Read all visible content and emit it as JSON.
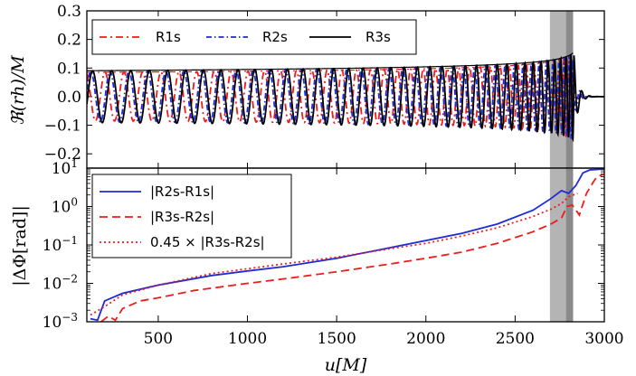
{
  "chart_data": [
    {
      "type": "line",
      "xlabel": "u[M]",
      "ylabel": "ℜ(rh)/M",
      "xlim": [
        100,
        3000
      ],
      "ylim": [
        -0.25,
        0.3
      ],
      "yticks": [
        "−0.2",
        "−0.1",
        "0.0",
        "0.1",
        "0.2",
        "0.3"
      ],
      "ytick_values": [
        -0.2,
        -0.1,
        0.0,
        0.1,
        0.2,
        0.3
      ],
      "legend_position": "top-left",
      "series": [
        {
          "name": "R1s",
          "color": "#ee1c1c",
          "style": "dash-dot",
          "amplitude_at_start": 0.088,
          "peak_u": 2790,
          "peak_amplitude": 0.15
        },
        {
          "name": "R2s",
          "color": "#1f2ad8",
          "style": "dash-dot",
          "amplitude_at_start": 0.088,
          "peak_u": 2820,
          "peak_amplitude": 0.155
        },
        {
          "name": "R3s",
          "color": "#000000",
          "style": "solid",
          "amplitude_at_start": 0.088,
          "peak_u": 2830,
          "peak_amplitude": 0.16
        }
      ],
      "shaded_bands": [
        {
          "from": 2695,
          "to": 2785,
          "color": "#b4b4b4"
        },
        {
          "from": 2785,
          "to": 2825,
          "color": "#8a8a8a"
        }
      ]
    },
    {
      "type": "line",
      "xlabel": "u[M]",
      "ylabel": "|ΔΦ[rad]|",
      "xlim": [
        100,
        3000
      ],
      "ylim": [
        0.001,
        10
      ],
      "yscale": "log",
      "xticks": [
        "500",
        "1000",
        "1500",
        "2000",
        "2500",
        "3000"
      ],
      "xtick_values": [
        500,
        1000,
        1500,
        2000,
        2500,
        3000
      ],
      "yticks": [
        {
          "base": "10",
          "exp": "−3",
          "value": 0.001
        },
        {
          "base": "10",
          "exp": "−2",
          "value": 0.01
        },
        {
          "base": "10",
          "exp": "−1",
          "value": 0.1
        },
        {
          "base": "10",
          "exp": "0",
          "value": 1
        },
        {
          "base": "10",
          "exp": "1",
          "value": 10
        }
      ],
      "legend_position": "top-left",
      "series": [
        {
          "name": "|R2s-R1s|",
          "color": "#1f2ad8",
          "style": "solid",
          "x": [
            120,
            160,
            200,
            300,
            500,
            800,
            1000,
            1200,
            1500,
            1800,
            2000,
            2200,
            2400,
            2600,
            2700,
            2760,
            2800,
            2840,
            2880,
            2920,
            3000
          ],
          "y": [
            0.0012,
            0.0011,
            0.0035,
            0.0055,
            0.009,
            0.016,
            0.021,
            0.027,
            0.045,
            0.085,
            0.13,
            0.2,
            0.35,
            0.8,
            1.6,
            2.6,
            2.2,
            3.5,
            7.5,
            9.0,
            9.5
          ]
        },
        {
          "name": "|R3s-R2s|",
          "color": "#ee1c1c",
          "style": "dashed",
          "x": [
            180,
            220,
            260,
            300,
            400,
            500,
            700,
            800,
            1000,
            1200,
            1500,
            1800,
            2000,
            2200,
            2400,
            2600,
            2700,
            2760,
            2790,
            2820,
            2860,
            2900,
            2940,
            2960,
            3000
          ],
          "y": [
            0.001,
            0.0014,
            0.0011,
            0.0022,
            0.0035,
            0.0042,
            0.0065,
            0.0075,
            0.01,
            0.013,
            0.02,
            0.032,
            0.045,
            0.065,
            0.11,
            0.22,
            0.35,
            0.5,
            1.0,
            1.1,
            0.6,
            2.2,
            4.5,
            6.0,
            7.0
          ]
        },
        {
          "name": "0.45 × |R3s-R2s|",
          "color": "#ee1c1c",
          "style": "dotted",
          "x": [
            120,
            200,
            300,
            500,
            800,
            1000,
            1200,
            1500,
            1800,
            2000,
            2200,
            2400,
            2600,
            2700,
            2760,
            2800,
            2850
          ],
          "y": [
            0.0015,
            0.0025,
            0.005,
            0.009,
            0.018,
            0.024,
            0.032,
            0.048,
            0.08,
            0.11,
            0.17,
            0.28,
            0.55,
            0.85,
            1.2,
            1.8,
            2.2
          ]
        }
      ],
      "shaded_bands": [
        {
          "from": 2695,
          "to": 2785,
          "color": "#b4b4b4"
        },
        {
          "from": 2785,
          "to": 2825,
          "color": "#8a8a8a"
        }
      ]
    }
  ]
}
